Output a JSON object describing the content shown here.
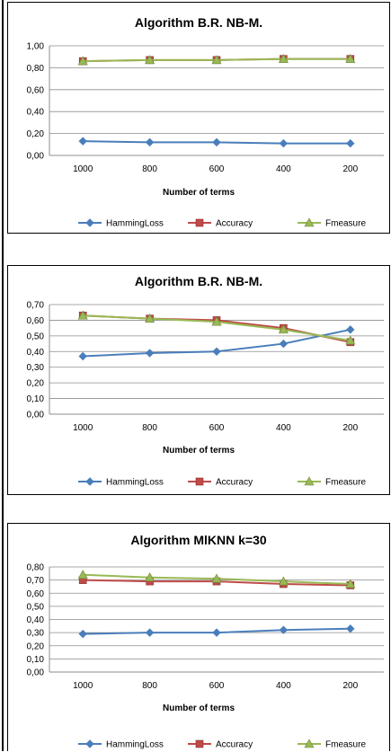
{
  "chart_data": [
    {
      "type": "line",
      "title": "Algorithm B.R. NB-M.",
      "xlabel": "Number of terms",
      "ylabel": "",
      "categories": [
        "1000",
        "800",
        "600",
        "400",
        "200"
      ],
      "ylim": [
        0,
        1.0
      ],
      "yticks": [
        "0,00",
        "0,20",
        "0,40",
        "0,60",
        "0,80",
        "1,00"
      ],
      "grid": true,
      "legend_position": "bottom",
      "series": [
        {
          "name": "HammingLoss",
          "color": "#4a7ebb",
          "marker": "diamond",
          "values": [
            0.13,
            0.12,
            0.12,
            0.11,
            0.11
          ]
        },
        {
          "name": "Accuracy",
          "color": "#be4b48",
          "marker": "square",
          "values": [
            0.86,
            0.87,
            0.87,
            0.88,
            0.88
          ]
        },
        {
          "name": "Fmeasure",
          "color": "#98b954",
          "marker": "triangle",
          "values": [
            0.86,
            0.87,
            0.87,
            0.88,
            0.88
          ]
        }
      ]
    },
    {
      "type": "line",
      "title": "Algorithm B.R. NB-M.",
      "xlabel": "Number of terms",
      "ylabel": "",
      "categories": [
        "1000",
        "800",
        "600",
        "400",
        "200"
      ],
      "ylim": [
        0,
        0.7
      ],
      "yticks": [
        "0,00",
        "0,10",
        "0,20",
        "0,30",
        "0,40",
        "0,50",
        "0,60",
        "0,70"
      ],
      "grid": true,
      "legend_position": "bottom",
      "series": [
        {
          "name": "HammingLoss",
          "color": "#4a7ebb",
          "marker": "diamond",
          "values": [
            0.37,
            0.39,
            0.4,
            0.45,
            0.54
          ]
        },
        {
          "name": "Accuracy",
          "color": "#be4b48",
          "marker": "square",
          "values": [
            0.63,
            0.61,
            0.6,
            0.55,
            0.46
          ]
        },
        {
          "name": "Fmeasure",
          "color": "#98b954",
          "marker": "triangle",
          "values": [
            0.63,
            0.61,
            0.59,
            0.54,
            0.47
          ]
        }
      ]
    },
    {
      "type": "line",
      "title": "Algorithm MlKNN k=30",
      "xlabel": "Number of terms",
      "ylabel": "",
      "categories": [
        "1000",
        "800",
        "600",
        "400",
        "200"
      ],
      "ylim": [
        0,
        0.8
      ],
      "yticks": [
        "0,00",
        "0,10",
        "0,20",
        "0,30",
        "0,40",
        "0,50",
        "0,60",
        "0,70",
        "0,80"
      ],
      "grid": true,
      "legend_position": "bottom",
      "series": [
        {
          "name": "HammingLoss",
          "color": "#4a7ebb",
          "marker": "diamond",
          "values": [
            0.29,
            0.3,
            0.3,
            0.32,
            0.33
          ]
        },
        {
          "name": "Accuracy",
          "color": "#be4b48",
          "marker": "square",
          "values": [
            0.7,
            0.69,
            0.69,
            0.67,
            0.66
          ]
        },
        {
          "name": "Fmeasure",
          "color": "#98b954",
          "marker": "triangle",
          "values": [
            0.74,
            0.72,
            0.71,
            0.69,
            0.67
          ]
        }
      ]
    }
  ]
}
